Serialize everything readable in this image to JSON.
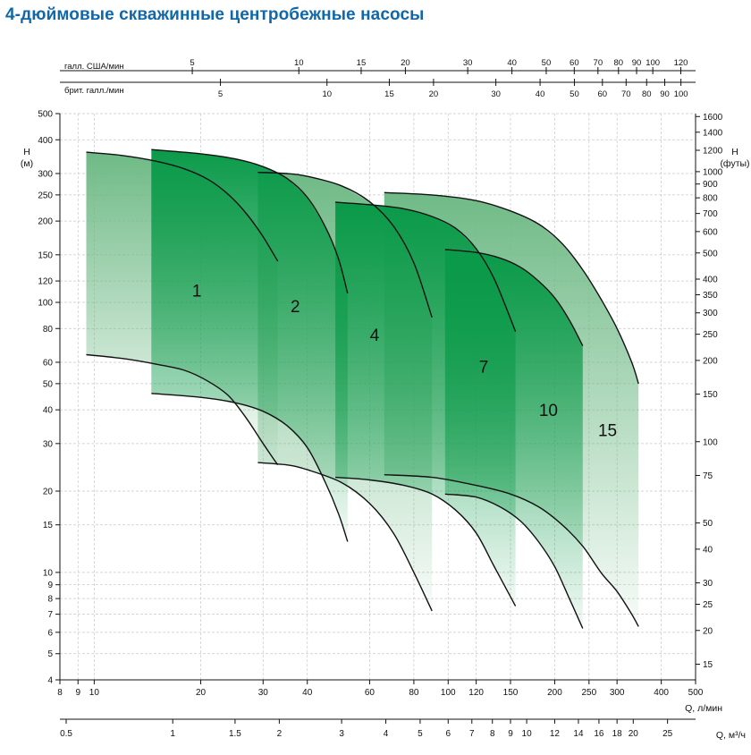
{
  "title": "4-дюймовые скважинные центробежные насосы",
  "colors": {
    "title": "#1167a8",
    "band_light": "#6fba86",
    "band_dark": "#0a9a49",
    "grid": "#c8c8c8",
    "curve": "#111111"
  },
  "chart_data": {
    "type": "area",
    "title": "4-дюймовые скважинные центробежные насосы",
    "x_scale": "log",
    "y_scale": "log",
    "grid": true,
    "xlim": [
      8,
      500
    ],
    "ylim": [
      4,
      500
    ],
    "x_axes": {
      "flow_lpm": {
        "label": "Q, л/мин",
        "ticks": [
          8,
          9,
          10,
          20,
          30,
          40,
          60,
          80,
          100,
          120,
          150,
          200,
          250,
          300,
          400,
          500
        ],
        "tick_labels": [
          "8",
          "9",
          "10",
          "20",
          "30",
          "40",
          "60",
          "80",
          "100",
          "120",
          "150",
          "200",
          "250",
          "300",
          "400",
          "500"
        ]
      },
      "flow_m3h": {
        "label": "Q, м³/ч",
        "ticks": [
          0.5,
          1,
          1.5,
          2,
          3,
          4,
          5,
          6,
          7,
          8,
          9,
          10,
          12,
          14,
          16,
          18,
          20,
          25
        ],
        "tick_labels": [
          "0.5",
          "1",
          "1.5",
          "2",
          "3",
          "4",
          "5",
          "6",
          "7",
          "8",
          "9",
          "10",
          "12",
          "14",
          "16",
          "18",
          "20",
          "25"
        ]
      },
      "flow_us_gpm": {
        "label": "галл. США/мин",
        "ticks": [
          5,
          10,
          15,
          20,
          30,
          40,
          50,
          60,
          70,
          80,
          90,
          100,
          120
        ],
        "tick_labels": [
          "5",
          "10",
          "15",
          "20",
          "30",
          "40",
          "50",
          "60",
          "70",
          "80",
          "90",
          "100",
          "120"
        ]
      },
      "flow_uk_gpm": {
        "label": "брит. галл./мин",
        "ticks": [
          5,
          10,
          15,
          20,
          30,
          40,
          50,
          60,
          70,
          80,
          90,
          100
        ],
        "tick_labels": [
          "5",
          "10",
          "15",
          "20",
          "30",
          "40",
          "50",
          "60",
          "70",
          "80",
          "90",
          "100"
        ]
      }
    },
    "y_axes": {
      "head_m": {
        "label": "H\n(м)",
        "ticks": [
          4,
          5,
          6,
          7,
          8,
          9,
          10,
          15,
          20,
          30,
          40,
          50,
          60,
          80,
          100,
          120,
          150,
          200,
          250,
          300,
          400,
          500
        ],
        "tick_labels": [
          "4",
          "5",
          "6",
          "7",
          "8",
          "9",
          "10",
          "15",
          "20",
          "30",
          "40",
          "50",
          "60",
          "80",
          "100",
          "120",
          "150",
          "200",
          "250",
          "300",
          "400",
          "500"
        ]
      },
      "head_ft": {
        "label": "H\n(футы)",
        "ticks": [
          15,
          20,
          25,
          30,
          40,
          50,
          75,
          100,
          150,
          200,
          250,
          300,
          350,
          400,
          500,
          600,
          700,
          800,
          900,
          1000,
          1200,
          1400,
          1600
        ],
        "tick_labels": [
          "15",
          "20",
          "25",
          "30",
          "40",
          "50",
          "75",
          "100",
          "150",
          "200",
          "250",
          "300",
          "350",
          "400",
          "500",
          "600",
          "700",
          "800",
          "900",
          "1000",
          "1200",
          "1400",
          "1600"
        ]
      }
    },
    "series": [
      {
        "name": "1",
        "label_at": [
          19.5,
          105
        ],
        "q_range": [
          9.5,
          33
        ],
        "max_stage_curve": [
          [
            9.5,
            360
          ],
          [
            12,
            350
          ],
          [
            15,
            333
          ],
          [
            18,
            312
          ],
          [
            21,
            285
          ],
          [
            24,
            250
          ],
          [
            27,
            212
          ],
          [
            30,
            175
          ],
          [
            33,
            142
          ]
        ],
        "min_stage_curve": [
          [
            9.5,
            64
          ],
          [
            12,
            62
          ],
          [
            15,
            59
          ],
          [
            18,
            56
          ],
          [
            21,
            51
          ],
          [
            24,
            45
          ],
          [
            27,
            37
          ],
          [
            30,
            30
          ],
          [
            33,
            25
          ]
        ]
      },
      {
        "name": "2",
        "label_at": [
          37,
          92
        ],
        "q_range": [
          14.5,
          52
        ],
        "max_stage_curve": [
          [
            14.5,
            368
          ],
          [
            20,
            355
          ],
          [
            25,
            340
          ],
          [
            30,
            318
          ],
          [
            35,
            288
          ],
          [
            40,
            245
          ],
          [
            45,
            190
          ],
          [
            49,
            145
          ],
          [
            52,
            108
          ]
        ],
        "min_stage_curve": [
          [
            14.5,
            46
          ],
          [
            20,
            44.5
          ],
          [
            25,
            42.5
          ],
          [
            30,
            39.5
          ],
          [
            35,
            35
          ],
          [
            40,
            29
          ],
          [
            45,
            21.5
          ],
          [
            49,
            16.5
          ],
          [
            52,
            13
          ]
        ]
      },
      {
        "name": "4",
        "label_at": [
          62,
          72
        ],
        "q_range": [
          29,
          90
        ],
        "max_stage_curve": [
          [
            29,
            303
          ],
          [
            35,
            300
          ],
          [
            40,
            293
          ],
          [
            50,
            270
          ],
          [
            60,
            236
          ],
          [
            70,
            192
          ],
          [
            80,
            140
          ],
          [
            90,
            88
          ]
        ],
        "min_stage_curve": [
          [
            29,
            25.5
          ],
          [
            35,
            25
          ],
          [
            40,
            24
          ],
          [
            50,
            21.5
          ],
          [
            60,
            18
          ],
          [
            70,
            14
          ],
          [
            80,
            10
          ],
          [
            90,
            7.2
          ]
        ]
      },
      {
        "name": "7",
        "label_at": [
          126,
          55
        ],
        "q_range": [
          48,
          155
        ],
        "max_stage_curve": [
          [
            48,
            235
          ],
          [
            60,
            230
          ],
          [
            75,
            222
          ],
          [
            90,
            208
          ],
          [
            105,
            188
          ],
          [
            120,
            158
          ],
          [
            135,
            122
          ],
          [
            155,
            78
          ]
        ],
        "min_stage_curve": [
          [
            48,
            22.5
          ],
          [
            60,
            22
          ],
          [
            75,
            21
          ],
          [
            90,
            19.5
          ],
          [
            105,
            17
          ],
          [
            120,
            14
          ],
          [
            135,
            10.5
          ],
          [
            155,
            7.5
          ]
        ]
      },
      {
        "name": "10",
        "label_at": [
          192,
          38
        ],
        "q_range": [
          98,
          240
        ],
        "max_stage_curve": [
          [
            98,
            157
          ],
          [
            120,
            153
          ],
          [
            140,
            146
          ],
          [
            160,
            135
          ],
          [
            180,
            120
          ],
          [
            200,
            104
          ],
          [
            220,
            86
          ],
          [
            240,
            69
          ]
        ],
        "min_stage_curve": [
          [
            98,
            19.5
          ],
          [
            120,
            19
          ],
          [
            140,
            17.5
          ],
          [
            160,
            15.5
          ],
          [
            180,
            13
          ],
          [
            200,
            10.5
          ],
          [
            220,
            8
          ],
          [
            240,
            6.2
          ]
        ]
      },
      {
        "name": "15",
        "label_at": [
          282,
          32
        ],
        "q_range": [
          66,
          345
        ],
        "max_stage_curve": [
          [
            66,
            255
          ],
          [
            90,
            250
          ],
          [
            120,
            238
          ],
          [
            150,
            218
          ],
          [
            180,
            195
          ],
          [
            210,
            165
          ],
          [
            240,
            132
          ],
          [
            270,
            103
          ],
          [
            300,
            80
          ],
          [
            330,
            60
          ],
          [
            345,
            50
          ]
        ],
        "min_stage_curve": [
          [
            66,
            23
          ],
          [
            90,
            22.5
          ],
          [
            120,
            21
          ],
          [
            150,
            19.5
          ],
          [
            180,
            17.5
          ],
          [
            210,
            15
          ],
          [
            240,
            12.5
          ],
          [
            270,
            10
          ],
          [
            300,
            8.5
          ],
          [
            330,
            7
          ],
          [
            345,
            6.3
          ]
        ]
      }
    ]
  }
}
